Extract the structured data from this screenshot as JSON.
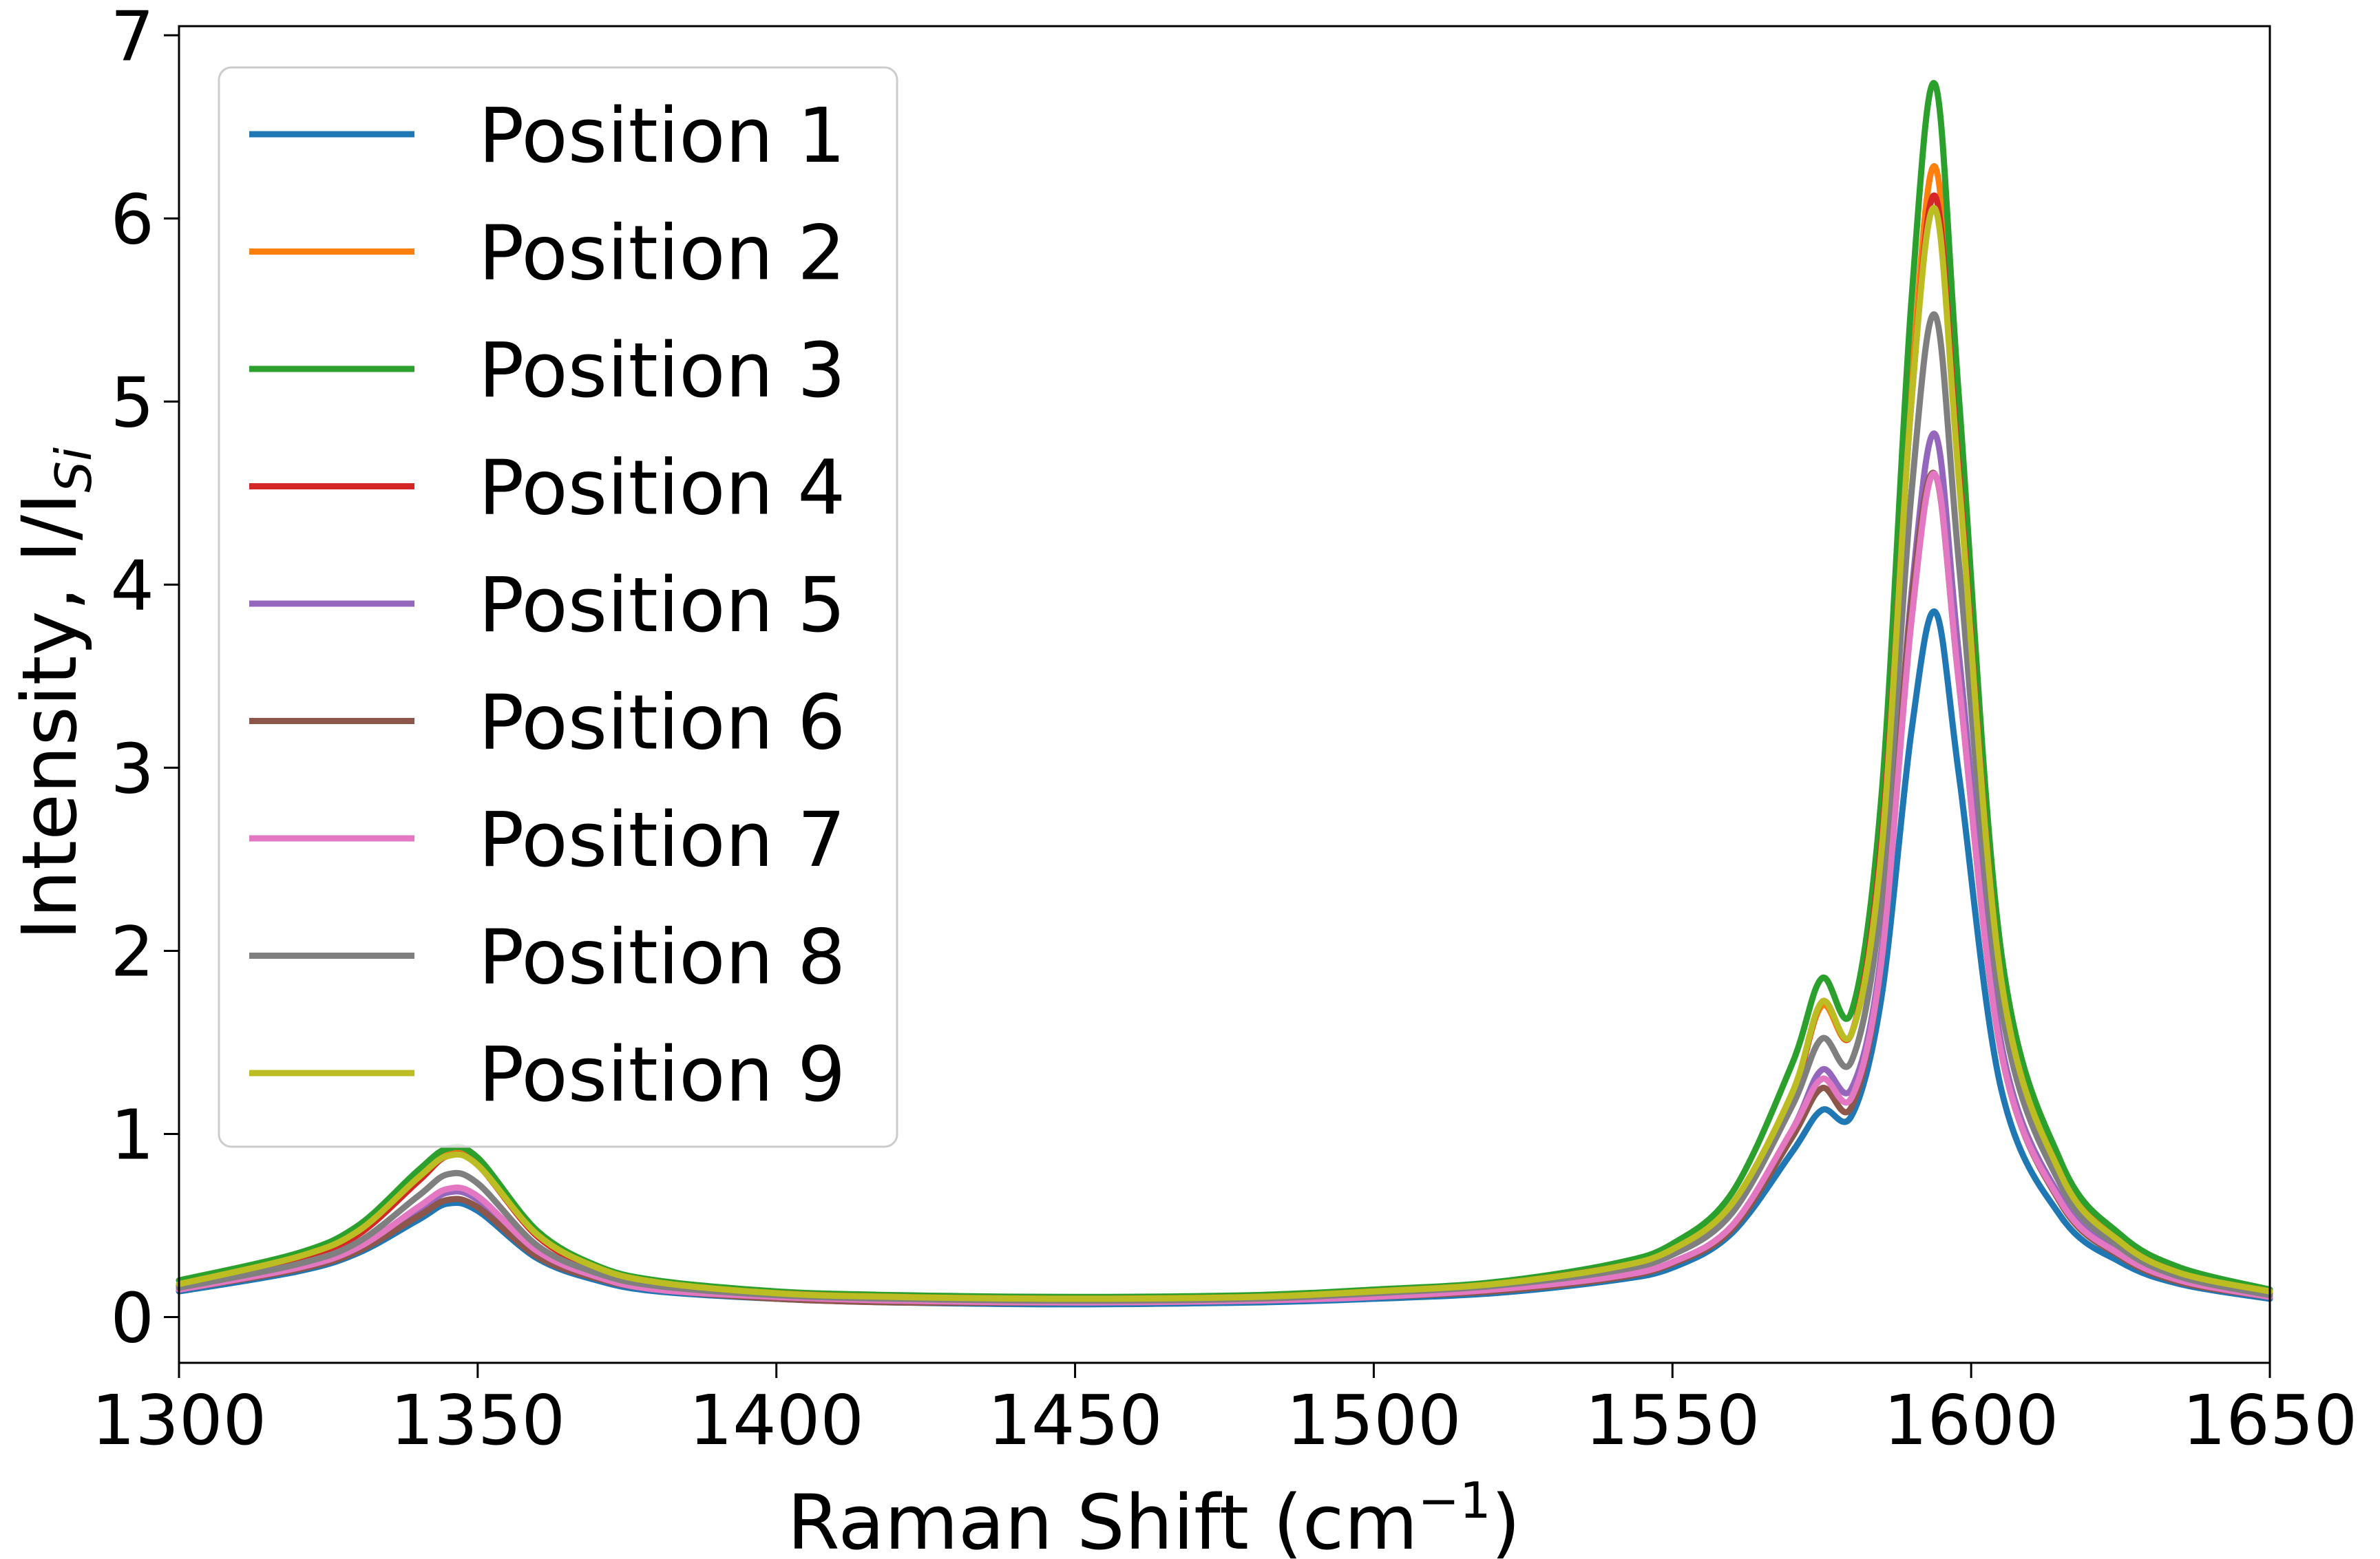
{
  "chart_data": {
    "type": "line",
    "title": "",
    "xlabel": {
      "main": "Raman Shift (cm",
      "sup": "−1",
      "tail": ")"
    },
    "ylabel": {
      "main": "Intensity, I/I",
      "sub": "Si"
    },
    "xlim": [
      1300,
      1650
    ],
    "ylim": [
      -0.25,
      7.05
    ],
    "xticks": [
      1300,
      1350,
      1400,
      1450,
      1500,
      1550,
      1600,
      1650
    ],
    "yticks": [
      0,
      1,
      2,
      3,
      4,
      5,
      6,
      7
    ],
    "grid": false,
    "legend_position": "top-left",
    "x": [
      1300,
      1320,
      1330,
      1340,
      1345,
      1350,
      1360,
      1370,
      1380,
      1400,
      1420,
      1450,
      1480,
      1500,
      1520,
      1540,
      1550,
      1560,
      1570,
      1575,
      1580,
      1585,
      1590,
      1594,
      1598,
      1605,
      1615,
      1625,
      1635,
      1650
    ],
    "series": [
      {
        "name": "Position 1",
        "color": "#1f77b4",
        "values": [
          0.14,
          0.25,
          0.35,
          0.53,
          0.62,
          0.58,
          0.32,
          0.2,
          0.14,
          0.1,
          0.08,
          0.07,
          0.08,
          0.1,
          0.13,
          0.2,
          0.27,
          0.46,
          0.9,
          1.13,
          1.1,
          1.75,
          3.2,
          3.85,
          2.95,
          1.25,
          0.55,
          0.3,
          0.18,
          0.1
        ]
      },
      {
        "name": "Position 2",
        "color": "#ff7f0e",
        "values": [
          0.18,
          0.33,
          0.47,
          0.77,
          0.9,
          0.85,
          0.45,
          0.27,
          0.19,
          0.13,
          0.11,
          0.1,
          0.11,
          0.14,
          0.18,
          0.27,
          0.37,
          0.62,
          1.22,
          1.7,
          1.55,
          2.6,
          5.1,
          6.28,
          4.7,
          1.9,
          0.8,
          0.42,
          0.25,
          0.14
        ]
      },
      {
        "name": "Position 3",
        "color": "#2ca02c",
        "values": [
          0.2,
          0.35,
          0.5,
          0.8,
          0.92,
          0.87,
          0.47,
          0.28,
          0.2,
          0.14,
          0.12,
          0.11,
          0.12,
          0.15,
          0.19,
          0.29,
          0.4,
          0.68,
          1.38,
          1.85,
          1.67,
          2.85,
          5.55,
          6.73,
          5.0,
          2.0,
          0.85,
          0.45,
          0.27,
          0.15
        ]
      },
      {
        "name": "Position 4",
        "color": "#d62728",
        "values": [
          0.17,
          0.31,
          0.45,
          0.74,
          0.88,
          0.83,
          0.44,
          0.26,
          0.18,
          0.13,
          0.11,
          0.1,
          0.11,
          0.14,
          0.18,
          0.27,
          0.36,
          0.6,
          1.2,
          1.72,
          1.55,
          2.6,
          5.0,
          6.12,
          4.6,
          1.85,
          0.78,
          0.41,
          0.24,
          0.13
        ]
      },
      {
        "name": "Position 5",
        "color": "#9467bd",
        "values": [
          0.15,
          0.27,
          0.38,
          0.58,
          0.68,
          0.64,
          0.35,
          0.22,
          0.15,
          0.11,
          0.09,
          0.08,
          0.09,
          0.11,
          0.15,
          0.22,
          0.3,
          0.5,
          1.02,
          1.35,
          1.25,
          2.0,
          3.95,
          4.82,
          3.6,
          1.5,
          0.65,
          0.35,
          0.2,
          0.11
        ]
      },
      {
        "name": "Position 6",
        "color": "#8c564b",
        "values": [
          0.15,
          0.26,
          0.36,
          0.55,
          0.64,
          0.6,
          0.33,
          0.21,
          0.15,
          0.1,
          0.08,
          0.08,
          0.09,
          0.11,
          0.14,
          0.21,
          0.29,
          0.48,
          0.98,
          1.25,
          1.15,
          1.95,
          3.9,
          4.6,
          3.45,
          1.45,
          0.62,
          0.33,
          0.19,
          0.11
        ]
      },
      {
        "name": "Position 7",
        "color": "#e377c2",
        "values": [
          0.15,
          0.27,
          0.38,
          0.6,
          0.7,
          0.66,
          0.36,
          0.22,
          0.15,
          0.11,
          0.09,
          0.08,
          0.09,
          0.11,
          0.15,
          0.22,
          0.3,
          0.5,
          1.02,
          1.3,
          1.2,
          1.95,
          3.8,
          4.6,
          3.45,
          1.45,
          0.63,
          0.34,
          0.2,
          0.11
        ]
      },
      {
        "name": "Position 8",
        "color": "#7f7f7f",
        "values": [
          0.16,
          0.29,
          0.41,
          0.66,
          0.78,
          0.73,
          0.39,
          0.24,
          0.17,
          0.12,
          0.1,
          0.09,
          0.1,
          0.13,
          0.17,
          0.25,
          0.34,
          0.57,
          1.15,
          1.52,
          1.4,
          2.3,
          4.5,
          5.47,
          4.1,
          1.7,
          0.72,
          0.38,
          0.22,
          0.12
        ]
      },
      {
        "name": "Position 9",
        "color": "#bcbd22",
        "values": [
          0.18,
          0.33,
          0.47,
          0.76,
          0.88,
          0.83,
          0.45,
          0.27,
          0.19,
          0.13,
          0.11,
          0.1,
          0.11,
          0.14,
          0.18,
          0.27,
          0.37,
          0.62,
          1.22,
          1.72,
          1.55,
          2.55,
          5.0,
          6.05,
          4.55,
          1.85,
          0.78,
          0.41,
          0.24,
          0.14
        ]
      }
    ]
  }
}
